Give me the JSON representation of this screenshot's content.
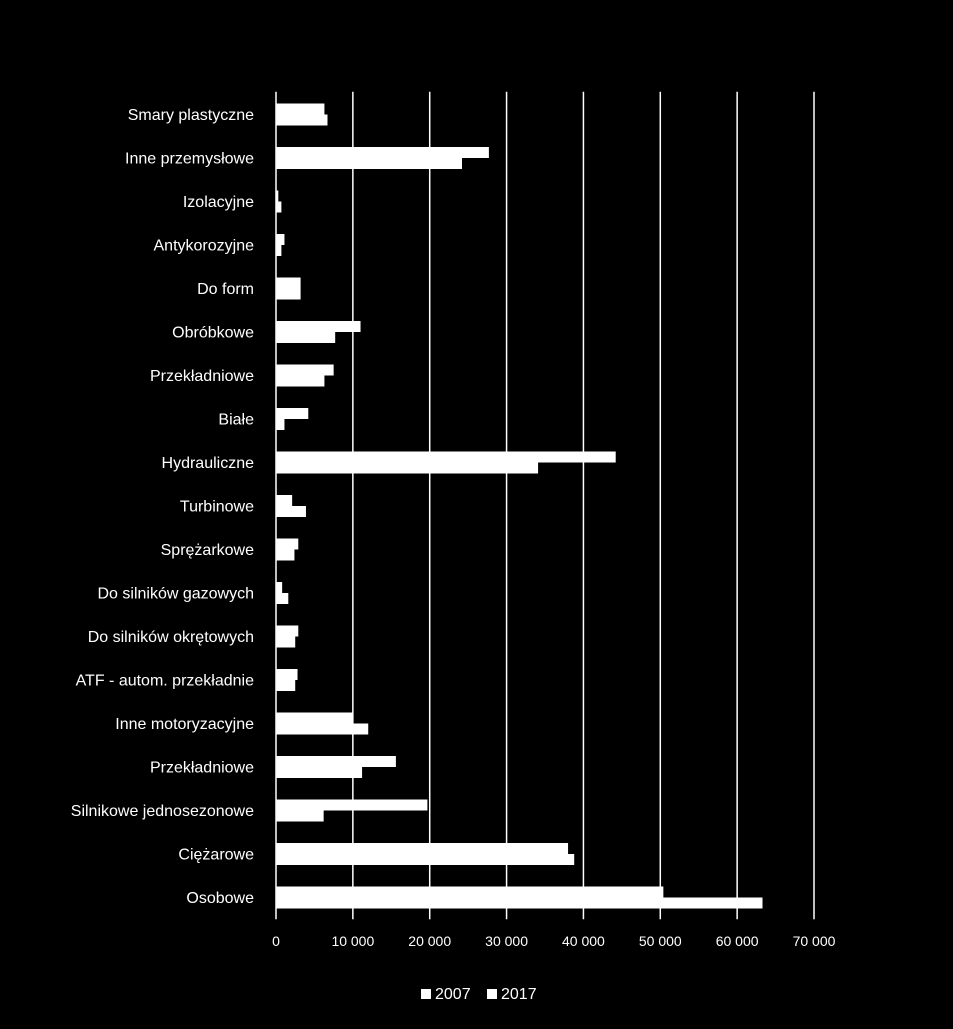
{
  "chart_data": {
    "type": "bar",
    "orientation": "horizontal",
    "categories": [
      "Smary plastyczne",
      "Inne przemysłowe",
      "Izolacyjne",
      "Antykorozyjne",
      "Do form",
      "Obróbkowe",
      "Przekładniowe",
      "Białe",
      "Hydrauliczne",
      "Turbinowe",
      "Sprężarkowe",
      "Do silników gazowych",
      "Do silników okrętowych",
      "ATF - autom. przekładnie",
      "Inne motoryzacyjne",
      "Przekładniowe",
      "Silnikowe jednosezonowe",
      "Ciężarowe",
      "Osobowe"
    ],
    "series": [
      {
        "name": "2007",
        "color": "#ffffff",
        "values": [
          6300,
          27700,
          300,
          1100,
          3200,
          11000,
          7500,
          4200,
          44200,
          2100,
          2900,
          800,
          2900,
          2800,
          10000,
          15600,
          19700,
          38000,
          50400
        ]
      },
      {
        "name": "2017",
        "color": "#ffffff",
        "values": [
          6700,
          24200,
          700,
          700,
          3200,
          7700,
          6300,
          1100,
          34100,
          3900,
          2400,
          1600,
          2500,
          2500,
          12000,
          11200,
          6200,
          38800,
          63300
        ]
      }
    ],
    "xlim": [
      0,
      70000
    ],
    "xticks": [
      0,
      10000,
      20000,
      30000,
      40000,
      50000,
      60000,
      70000
    ],
    "xtick_labels": [
      "0",
      "10 000",
      "20 000",
      "30 000",
      "40 000",
      "50 000",
      "60 000",
      "70 000"
    ],
    "grid": true,
    "legend_position": "bottom-center",
    "title": "",
    "xlabel": "",
    "ylabel": ""
  },
  "colors": {
    "background": "#000000",
    "foreground": "#ffffff"
  }
}
